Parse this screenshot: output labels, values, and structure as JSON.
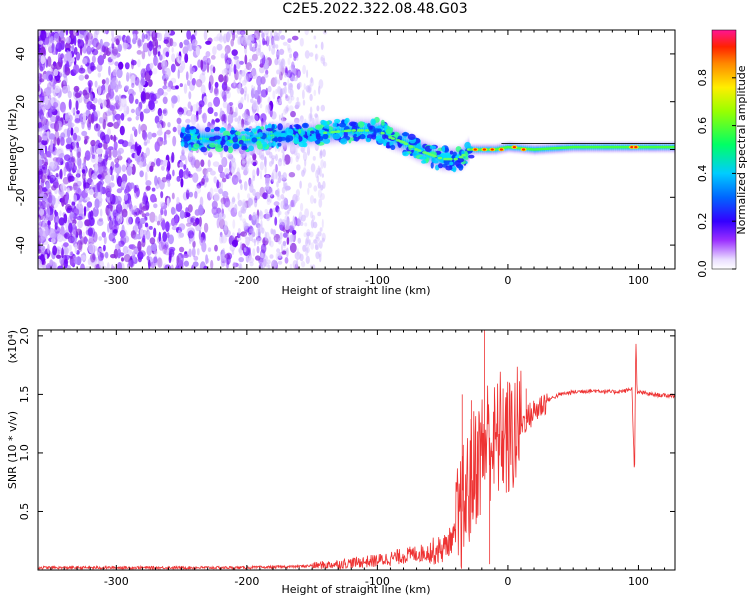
{
  "title": "C2E5.2022.322.08.48.G03",
  "colors": {
    "snr_line": "#ee3333",
    "colormap": [
      "#ffffff",
      "#d9c4ff",
      "#8a2be2",
      "#3300ff",
      "#00c8ff",
      "#00ff66",
      "#ccff00",
      "#ffcc00",
      "#ff3300",
      "#ff1493"
    ]
  },
  "chart_data": [
    {
      "type": "heatmap",
      "xlabel": "Height of straight line (km)",
      "ylabel": "Frequency (Hz)",
      "xlim": [
        -360,
        128
      ],
      "ylim": [
        -50,
        50
      ],
      "xticks": [
        -300,
        -200,
        -100,
        0,
        100
      ],
      "xtick_labels": [
        "-300",
        "-200",
        "-100",
        "0",
        "100"
      ],
      "yticks": [
        -40,
        -20,
        0,
        20,
        40
      ],
      "ytick_labels": [
        "-40",
        "-20",
        "0",
        "20",
        "40"
      ],
      "colorbar": {
        "label": "Normalized spectral amplitude",
        "range": [
          0,
          1
        ],
        "ticks": [
          0.0,
          0.2,
          0.4,
          0.6,
          0.8
        ],
        "tick_labels": [
          "0.0",
          "0.2",
          "0.4",
          "0.6",
          "0.8"
        ]
      },
      "center_frequency_track": {
        "x": [
          -250,
          -220,
          -200,
          -180,
          -160,
          -140,
          -120,
          -100,
          -90,
          -80,
          -70,
          -60,
          -50,
          -40,
          -35,
          -30,
          -20,
          -10,
          0,
          20,
          50,
          100,
          128
        ],
        "y": [
          5,
          4,
          4,
          6,
          6,
          7,
          8,
          8,
          5,
          3,
          0,
          -2,
          -4,
          -4,
          -3,
          0,
          0,
          0,
          1,
          0,
          1,
          1,
          1
        ]
      },
      "grid": false
    },
    {
      "type": "line",
      "xlabel": "Height of straight line (km)",
      "ylabel": "SNR (10 * v/v)",
      "y_multiplier": "(x10⁴)",
      "xlim": [
        -360,
        128
      ],
      "ylim": [
        0,
        2.05
      ],
      "xticks": [
        -300,
        -200,
        -100,
        0,
        100
      ],
      "xtick_labels": [
        "-300",
        "-200",
        "-100",
        "0",
        "100"
      ],
      "yticks": [
        0.5,
        1.0,
        1.5,
        2.0
      ],
      "ytick_labels": [
        "0.5",
        "1.0",
        "1.5",
        "2.0"
      ],
      "series": [
        {
          "x": [
            -360,
            -300,
            -250,
            -200,
            -160,
            -130,
            -110,
            -100,
            -90,
            -80,
            -70,
            -60,
            -50,
            -40,
            -35,
            -30,
            -25,
            -20,
            -15,
            -10,
            -5,
            0,
            10,
            20,
            30,
            40,
            50,
            60,
            70,
            80,
            90,
            95,
            97,
            98,
            99,
            100,
            105,
            110,
            120,
            128
          ],
          "y": [
            0.02,
            0.02,
            0.02,
            0.02,
            0.03,
            0.05,
            0.07,
            0.08,
            0.1,
            0.12,
            0.14,
            0.15,
            0.18,
            0.3,
            0.5,
            0.7,
            0.9,
            1.0,
            1.15,
            1.05,
            1.2,
            1.1,
            1.25,
            1.35,
            1.45,
            1.5,
            1.52,
            1.53,
            1.53,
            1.52,
            1.53,
            1.55,
            0.8,
            2.0,
            1.5,
            1.52,
            1.51,
            1.5,
            1.49,
            1.49
          ],
          "spikes": [
            {
              "x": -35,
              "y": 1.5
            },
            {
              "x": -28,
              "y": 1.45
            },
            {
              "x": -18,
              "y": 2.05
            },
            {
              "x": -14,
              "y": 0.05
            },
            {
              "x": 14,
              "y": 1.55
            }
          ]
        }
      ],
      "grid": false
    }
  ]
}
